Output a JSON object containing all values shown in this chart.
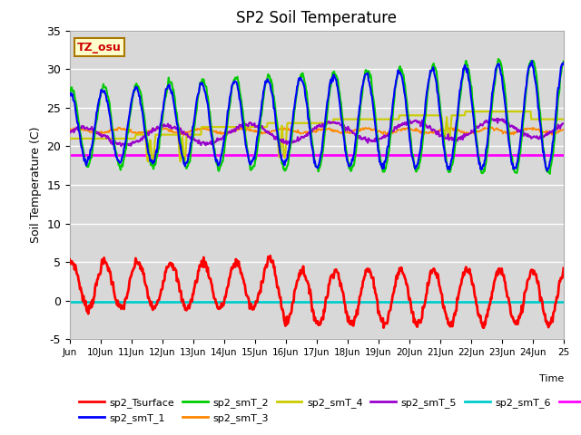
{
  "title": "SP2 Soil Temperature",
  "xlabel": "Time",
  "ylabel": "Soil Temperature (C)",
  "ylim": [
    -5,
    35
  ],
  "series_colors": {
    "sp2_Tsurface": "#ff0000",
    "sp2_smT_1": "#0000ff",
    "sp2_smT_2": "#00cc00",
    "sp2_smT_3": "#ff8800",
    "sp2_smT_4": "#cccc00",
    "sp2_smT_5": "#9900cc",
    "sp2_smT_6": "#00cccc",
    "sp2_smT_7": "#ff00ff"
  },
  "tz_label": "TZ_osu",
  "tz_color": "#cc0000",
  "tz_bg": "#ffffcc",
  "xtick_labels": [
    "Jun",
    "10Jun",
    "11Jun",
    "12Jun",
    "13Jun",
    "14Jun",
    "15Jun",
    "16Jun",
    "17Jun",
    "18Jun",
    "19Jun",
    "20Jun",
    "21Jun",
    "22Jun",
    "23Jun",
    "24Jun",
    "25"
  ],
  "yticks": [
    -5,
    0,
    5,
    10,
    15,
    20,
    25,
    30,
    35
  ],
  "smT7_value": 18.9,
  "smT6_value": -0.1,
  "n_points": 720,
  "n_days": 15
}
